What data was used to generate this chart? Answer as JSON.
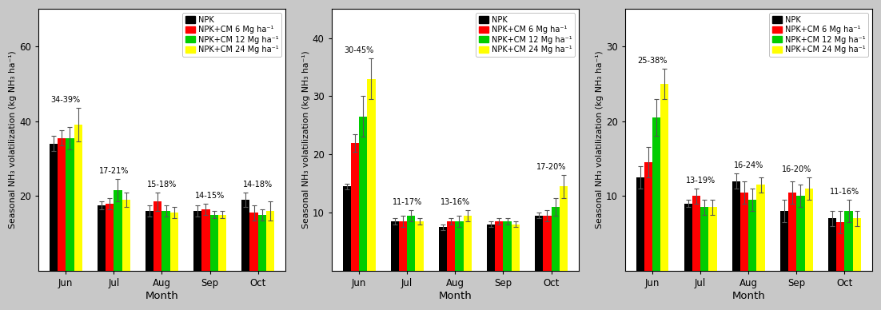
{
  "months": [
    "Jun",
    "Jul",
    "Aug",
    "Sep",
    "Oct"
  ],
  "bar_colors": [
    "#000000",
    "#ff0000",
    "#00cc00",
    "#ffff00"
  ],
  "legend_labels": [
    "NPK",
    "NPK+CM 6 Mg ha⁻¹",
    "NPK+CM 12 Mg ha⁻¹",
    "NPK+CM 24 Mg ha⁻¹"
  ],
  "ylabel": "Seasonal NH₃ volatilization (kg NH₃ ha⁻¹)",
  "xlabel": "Month",
  "fig_facecolor": "#c8c8c8",
  "panel_facecolor": "#ffffff",
  "panel1": {
    "values": [
      [
        34.0,
        35.5,
        35.5,
        39.0
      ],
      [
        17.5,
        18.0,
        21.5,
        19.0
      ],
      [
        16.0,
        18.5,
        16.0,
        15.5
      ],
      [
        16.0,
        16.5,
        15.0,
        15.0
      ],
      [
        19.0,
        15.5,
        15.0,
        16.0
      ]
    ],
    "errors": [
      [
        2.0,
        2.0,
        3.0,
        4.5
      ],
      [
        1.0,
        1.5,
        3.0,
        2.0
      ],
      [
        1.5,
        2.5,
        1.5,
        1.5
      ],
      [
        1.5,
        1.5,
        1.0,
        1.0
      ],
      [
        2.0,
        2.0,
        1.5,
        2.5
      ]
    ],
    "annotations": [
      "34-39%",
      "17-21%",
      "15-18%",
      "14-15%",
      "14-18%"
    ],
    "ylim": [
      0,
      70
    ],
    "yticks": [
      20,
      40,
      60
    ]
  },
  "panel2": {
    "values": [
      [
        14.5,
        22.0,
        26.5,
        33.0
      ],
      [
        8.5,
        8.5,
        9.5,
        8.5
      ],
      [
        7.5,
        8.5,
        8.5,
        9.5
      ],
      [
        8.0,
        8.5,
        8.5,
        8.0
      ],
      [
        9.5,
        9.5,
        11.0,
        14.5
      ]
    ],
    "errors": [
      [
        0.5,
        1.5,
        3.5,
        3.5
      ],
      [
        0.5,
        1.0,
        1.0,
        0.5
      ],
      [
        0.5,
        0.5,
        1.0,
        1.0
      ],
      [
        0.5,
        0.5,
        0.5,
        0.5
      ],
      [
        0.5,
        1.0,
        1.5,
        2.0
      ]
    ],
    "annotations": [
      "30-45%",
      "11-17%",
      "13-16%",
      "",
      "17-20%"
    ],
    "ylim": [
      0,
      45
    ],
    "yticks": [
      10,
      20,
      30,
      40
    ]
  },
  "panel3": {
    "values": [
      [
        12.5,
        14.5,
        20.5,
        25.0
      ],
      [
        9.0,
        10.0,
        8.5,
        8.5
      ],
      [
        12.0,
        10.5,
        9.5,
        11.5
      ],
      [
        8.0,
        10.5,
        10.0,
        11.0
      ],
      [
        7.0,
        6.5,
        8.0,
        7.0
      ]
    ],
    "errors": [
      [
        1.5,
        2.0,
        2.5,
        2.0
      ],
      [
        0.5,
        1.0,
        1.0,
        1.0
      ],
      [
        1.0,
        1.5,
        1.5,
        1.0
      ],
      [
        1.5,
        1.5,
        1.5,
        1.5
      ],
      [
        1.0,
        1.5,
        1.5,
        1.0
      ]
    ],
    "annotations": [
      "25-38%",
      "13-19%",
      "16-24%",
      "16-20%",
      "11-16%"
    ],
    "ylim": [
      0,
      35
    ],
    "yticks": [
      10,
      20,
      30
    ]
  }
}
